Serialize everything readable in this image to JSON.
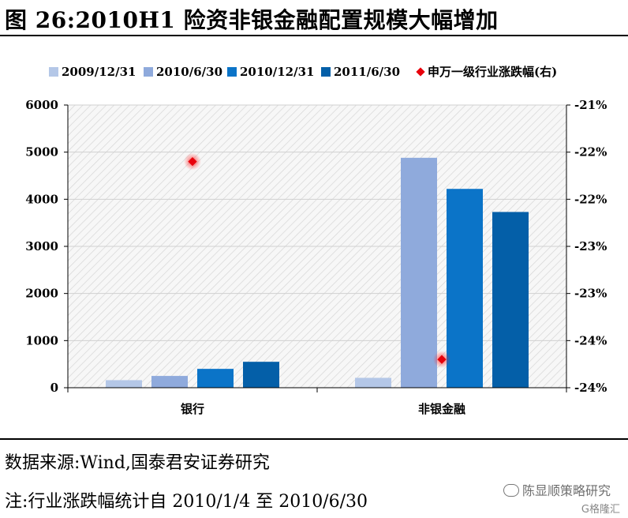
{
  "title": "图 26:2010H1 险资非银金融配置规模大幅增加",
  "chart_data": {
    "type": "bar",
    "categories": [
      "银行",
      "非银金融"
    ],
    "series": [
      {
        "name": "2009/12/31",
        "color": "#b4c7e7",
        "values": [
          160,
          210
        ]
      },
      {
        "name": "2010/6/30",
        "color": "#8faadc",
        "values": [
          250,
          4880
        ]
      },
      {
        "name": "2010/12/31",
        "color": "#0b74c8",
        "values": [
          400,
          4220
        ]
      },
      {
        "name": "2011/6/30",
        "color": "#045fa8",
        "values": [
          550,
          3730
        ]
      }
    ],
    "secondary_series": {
      "name": "申万一级行业涨跌幅(右)",
      "type": "scatter",
      "color": "#e8000b",
      "values": [
        -21.6,
        -23.7
      ]
    },
    "ylim": [
      0,
      6000
    ],
    "yticks": [
      "0",
      "1000",
      "2000",
      "3000",
      "4000",
      "5000",
      "6000"
    ],
    "y2lim": [
      -24,
      -21
    ],
    "y2ticks": [
      "-24%",
      "-24%",
      "-23%",
      "-23%",
      "-22%",
      "-22%",
      "-21%"
    ],
    "legend_position": "top",
    "grid": true
  },
  "footer": {
    "source": "数据来源:Wind,国泰君安证券研究",
    "note": "注:行业涨跌幅统计自 2010/1/4 至 2010/6/30"
  },
  "watermark": {
    "text": "陈显顺策略研究",
    "sub": "G格隆汇"
  }
}
